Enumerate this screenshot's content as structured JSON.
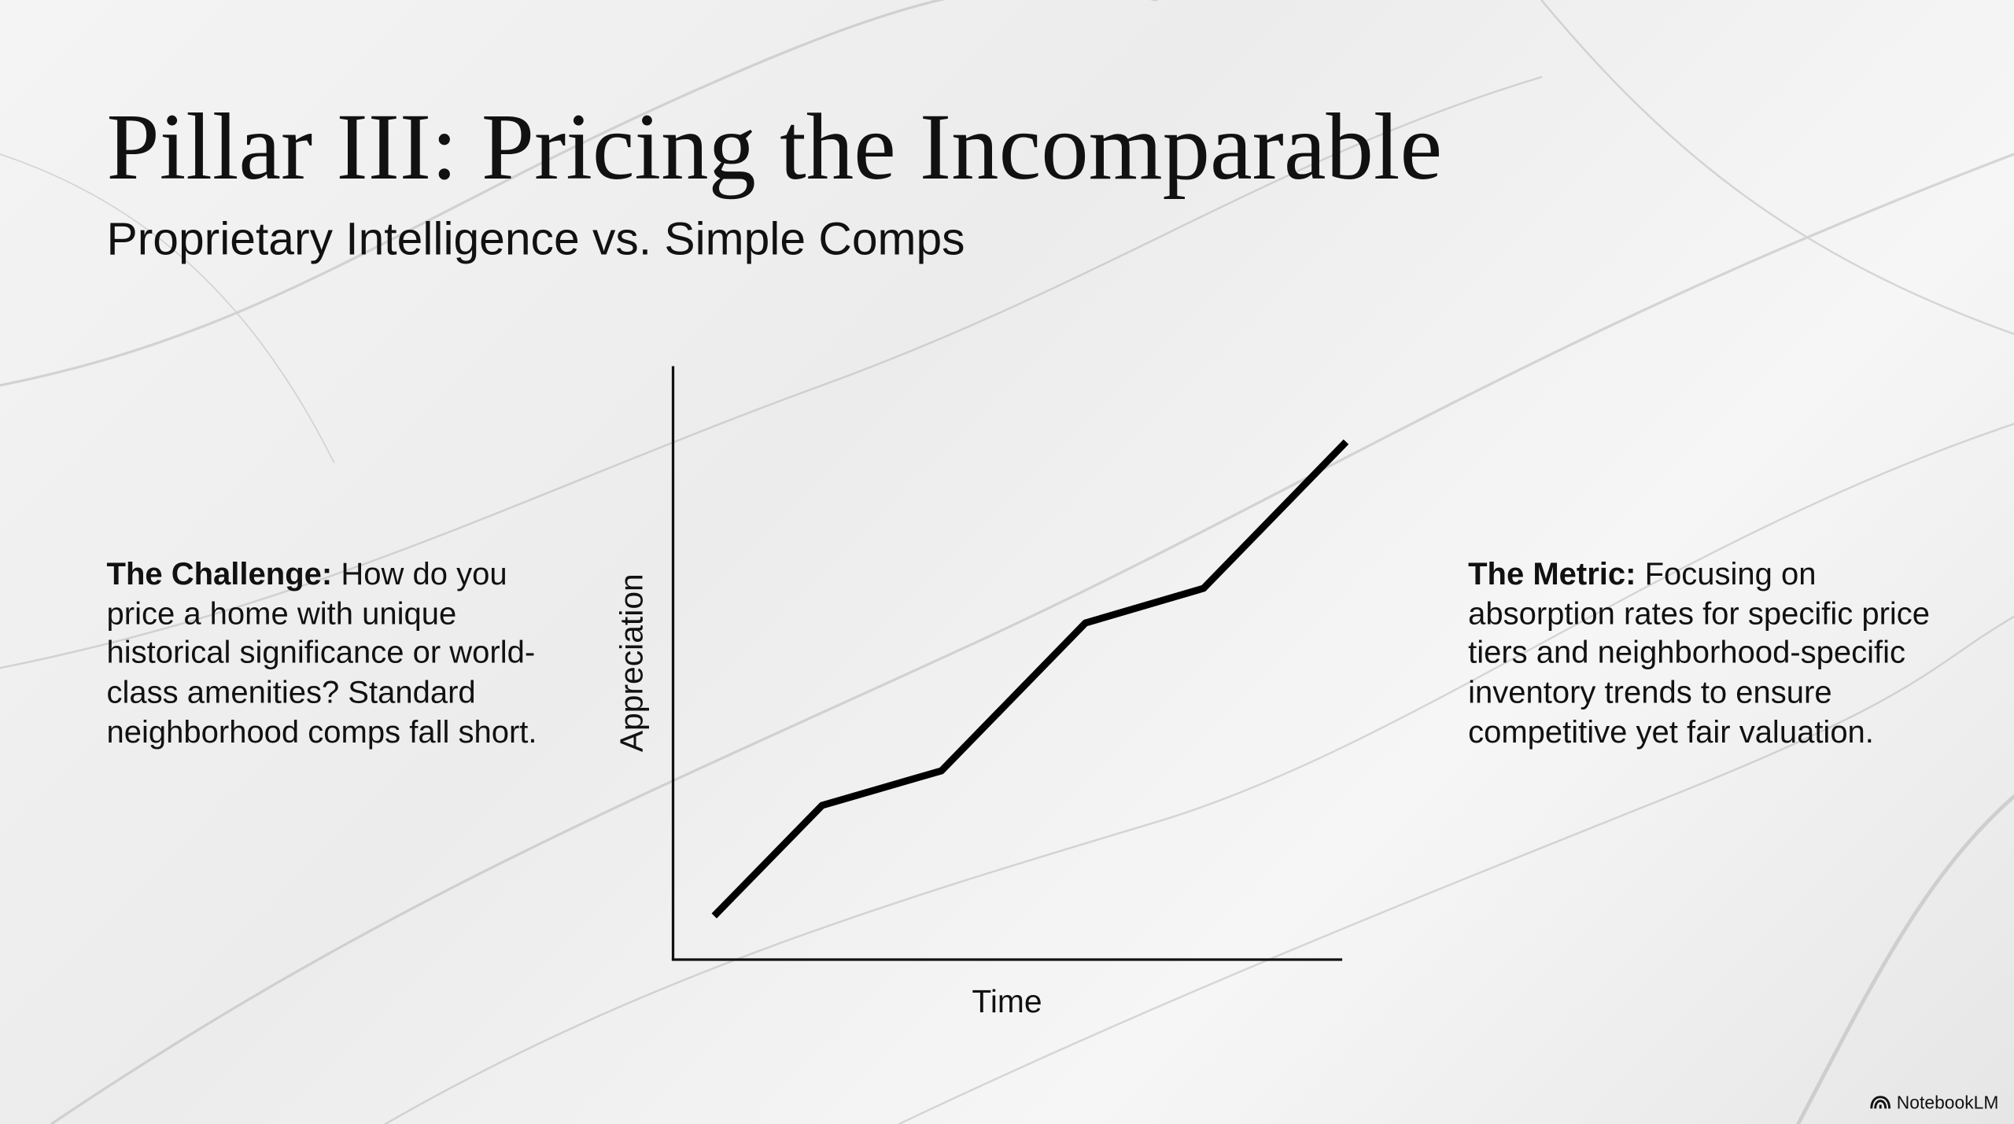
{
  "header": {
    "title": "Pillar III: Pricing the Incomparable",
    "subtitle": "Proprietary Intelligence vs. Simple Comps"
  },
  "left_panel": {
    "label": "The Challenge:",
    "text": "How do you price a home with unique historical significance or world-class amenities? Standard neighborhood comps fall short."
  },
  "diagram": {
    "y_label": "Appreciation",
    "x_label": "Time"
  },
  "right_panel": {
    "label": "The Metric:",
    "text": "Focusing on absorption rates for specific price tiers and neighborhood-specific inventory trends to ensure competitive yet fair valuation."
  },
  "footer": {
    "brand": "NotebookLM"
  }
}
